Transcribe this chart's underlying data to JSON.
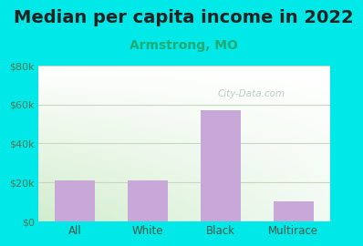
{
  "title": "Median per capita income in 2022",
  "subtitle": "Armstrong, MO",
  "categories": [
    "All",
    "White",
    "Black",
    "Multirace"
  ],
  "values": [
    21000,
    21000,
    57000,
    10000
  ],
  "bar_color": "#c8a8d8",
  "title_fontsize": 14,
  "subtitle_fontsize": 10,
  "subtitle_color": "#22aa77",
  "outer_bg": "#00e8e8",
  "ylim": [
    0,
    80000
  ],
  "yticks": [
    0,
    20000,
    40000,
    60000,
    80000
  ],
  "ytick_labels": [
    "$0",
    "$20k",
    "$40k",
    "$60k",
    "$80k"
  ],
  "grid_color": "#c8d8c0",
  "watermark": "City-Data.com",
  "tick_label_color": "#557755",
  "xticklabel_color": "#445544"
}
